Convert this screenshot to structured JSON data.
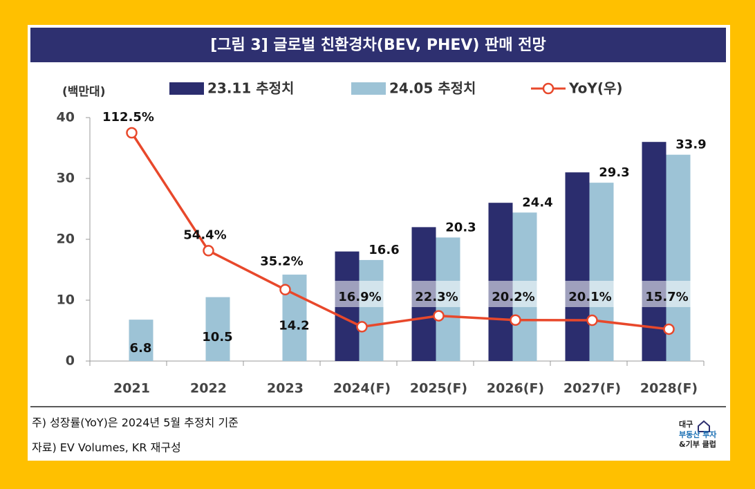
{
  "chart_data": {
    "type": "bar",
    "title": "[그림 3] 글로벌 친환경차(BEV, PHEV) 판매 전망",
    "y_label": "(백만대)",
    "categories": [
      "2021",
      "2022",
      "2023",
      "2024(F)",
      "2025(F)",
      "2026(F)",
      "2027(F)",
      "2028(F)"
    ],
    "series": [
      {
        "name": "23.11 추정치",
        "color": "#2b2d6e",
        "values": [
          null,
          null,
          null,
          18,
          22,
          26,
          31,
          36
        ]
      },
      {
        "name": "24.05 추정치",
        "color": "#9dc3d6",
        "values": [
          6.8,
          10.5,
          14.2,
          16.6,
          20.3,
          24.4,
          29.3,
          33.9
        ]
      },
      {
        "name": "YoY(우)",
        "color": "#e8482b",
        "type": "line",
        "axis": "y2",
        "values": [
          112.5,
          54.4,
          35.2,
          16.9,
          22.3,
          20.2,
          20.1,
          15.7
        ],
        "value_labels": [
          "112.5%",
          "54.4%",
          "35.2%",
          "16.9%",
          "22.3%",
          "20.2%",
          "20.1%",
          "15.7%"
        ]
      }
    ],
    "ylim": [
      0,
      40
    ],
    "yticks": [
      0,
      10,
      20,
      30,
      40
    ],
    "y2lim": [
      0,
      120
    ],
    "grid": false,
    "legend": "top"
  },
  "footer": {
    "note": "주) 성장률(YoY)은 2024년 5월 추정치 기준",
    "source": "자료) EV Volumes, KR 재구성",
    "logo": [
      "대구",
      "부동산 투자",
      "&기부 클럽"
    ]
  }
}
